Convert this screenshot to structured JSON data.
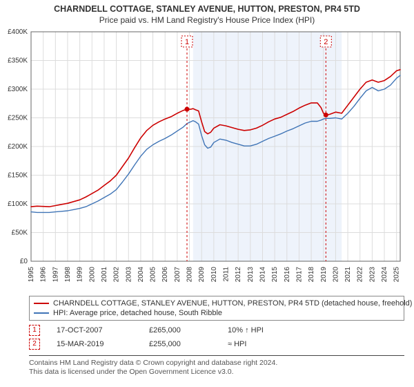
{
  "title": "CHARNDELL COTTAGE, STANLEY AVENUE, HUTTON, PRESTON, PR4 5TD",
  "subtitle": "Price paid vs. HM Land Registry's House Price Index (HPI)",
  "chart": {
    "type": "line",
    "background_color": "#ffffff",
    "grid_color": "#dcdcdc",
    "axis_color": "#666666",
    "ylim": [
      0,
      400000
    ],
    "ytick_step": 50000,
    "ytick_labels": [
      "£0",
      "£50K",
      "£100K",
      "£150K",
      "£200K",
      "£250K",
      "£300K",
      "£350K",
      "£400K"
    ],
    "x_years": [
      1995,
      1996,
      1997,
      1998,
      1999,
      2000,
      2001,
      2002,
      2003,
      2004,
      2005,
      2006,
      2007,
      2008,
      2009,
      2010,
      2011,
      2012,
      2013,
      2014,
      2015,
      2016,
      2017,
      2018,
      2019,
      2020,
      2021,
      2022,
      2023,
      2024,
      2025
    ],
    "shaded_band": {
      "from_year": 2008.3,
      "to_year": 2020.5,
      "fill": "#eef3fb"
    },
    "series": [
      {
        "name": "CHARNDELL COTTAGE, STANLEY AVENUE, HUTTON, PRESTON, PR4 5TD (detached house, freehold)",
        "color": "#cc0000",
        "width": 1.6,
        "points": [
          [
            1995.0,
            95000
          ],
          [
            1995.5,
            96000
          ],
          [
            1996.0,
            95500
          ],
          [
            1996.5,
            95000
          ],
          [
            1997.0,
            97000
          ],
          [
            1997.5,
            99000
          ],
          [
            1998.0,
            101000
          ],
          [
            1998.5,
            104000
          ],
          [
            1999.0,
            107000
          ],
          [
            1999.5,
            112000
          ],
          [
            2000.0,
            118000
          ],
          [
            2000.5,
            124000
          ],
          [
            2001.0,
            132000
          ],
          [
            2001.5,
            140000
          ],
          [
            2002.0,
            150000
          ],
          [
            2002.5,
            165000
          ],
          [
            2003.0,
            180000
          ],
          [
            2003.5,
            198000
          ],
          [
            2004.0,
            215000
          ],
          [
            2004.5,
            228000
          ],
          [
            2005.0,
            237000
          ],
          [
            2005.5,
            243000
          ],
          [
            2006.0,
            248000
          ],
          [
            2006.5,
            252000
          ],
          [
            2007.0,
            258000
          ],
          [
            2007.5,
            263000
          ],
          [
            2007.8,
            265000
          ],
          [
            2008.1,
            265000
          ],
          [
            2008.3,
            266000
          ],
          [
            2008.5,
            264000
          ],
          [
            2008.75,
            262000
          ],
          [
            2009.0,
            243000
          ],
          [
            2009.25,
            226000
          ],
          [
            2009.5,
            222000
          ],
          [
            2009.75,
            225000
          ],
          [
            2010.0,
            232000
          ],
          [
            2010.5,
            238000
          ],
          [
            2011.0,
            236000
          ],
          [
            2011.5,
            233000
          ],
          [
            2012.0,
            230000
          ],
          [
            2012.5,
            228000
          ],
          [
            2013.0,
            229000
          ],
          [
            2013.5,
            232000
          ],
          [
            2014.0,
            237000
          ],
          [
            2014.5,
            243000
          ],
          [
            2015.0,
            248000
          ],
          [
            2015.5,
            251000
          ],
          [
            2016.0,
            256000
          ],
          [
            2016.5,
            261000
          ],
          [
            2017.0,
            267000
          ],
          [
            2017.5,
            272000
          ],
          [
            2018.0,
            276000
          ],
          [
            2018.5,
            276000
          ],
          [
            2018.8,
            268000
          ],
          [
            2019.0,
            258000
          ],
          [
            2019.2,
            255000
          ],
          [
            2019.5,
            256000
          ],
          [
            2020.0,
            260000
          ],
          [
            2020.5,
            258000
          ],
          [
            2021.0,
            272000
          ],
          [
            2021.5,
            286000
          ],
          [
            2022.0,
            300000
          ],
          [
            2022.5,
            312000
          ],
          [
            2023.0,
            316000
          ],
          [
            2023.5,
            312000
          ],
          [
            2024.0,
            315000
          ],
          [
            2024.5,
            322000
          ],
          [
            2025.0,
            332000
          ],
          [
            2025.3,
            334000
          ]
        ]
      },
      {
        "name": "HPI: Average price, detached house, South Ribble",
        "color": "#3f74b6",
        "width": 1.4,
        "points": [
          [
            1995.0,
            86000
          ],
          [
            1995.5,
            85000
          ],
          [
            1996.0,
            85000
          ],
          [
            1996.5,
            85000
          ],
          [
            1997.0,
            86000
          ],
          [
            1997.5,
            87000
          ],
          [
            1998.0,
            88000
          ],
          [
            1998.5,
            90000
          ],
          [
            1999.0,
            92000
          ],
          [
            1999.5,
            95000
          ],
          [
            2000.0,
            100000
          ],
          [
            2000.5,
            105000
          ],
          [
            2001.0,
            111000
          ],
          [
            2001.5,
            117000
          ],
          [
            2002.0,
            125000
          ],
          [
            2002.5,
            138000
          ],
          [
            2003.0,
            152000
          ],
          [
            2003.5,
            168000
          ],
          [
            2004.0,
            183000
          ],
          [
            2004.5,
            195000
          ],
          [
            2005.0,
            203000
          ],
          [
            2005.5,
            209000
          ],
          [
            2006.0,
            214000
          ],
          [
            2006.5,
            220000
          ],
          [
            2007.0,
            227000
          ],
          [
            2007.5,
            234000
          ],
          [
            2007.8,
            240000
          ],
          [
            2008.1,
            243000
          ],
          [
            2008.3,
            245000
          ],
          [
            2008.5,
            243000
          ],
          [
            2008.75,
            239000
          ],
          [
            2009.0,
            219000
          ],
          [
            2009.25,
            203000
          ],
          [
            2009.5,
            197000
          ],
          [
            2009.75,
            199000
          ],
          [
            2010.0,
            207000
          ],
          [
            2010.5,
            213000
          ],
          [
            2011.0,
            211000
          ],
          [
            2011.5,
            207000
          ],
          [
            2012.0,
            204000
          ],
          [
            2012.5,
            201000
          ],
          [
            2013.0,
            201000
          ],
          [
            2013.5,
            204000
          ],
          [
            2014.0,
            209000
          ],
          [
            2014.5,
            214000
          ],
          [
            2015.0,
            218000
          ],
          [
            2015.5,
            222000
          ],
          [
            2016.0,
            227000
          ],
          [
            2016.5,
            231000
          ],
          [
            2017.0,
            236000
          ],
          [
            2017.5,
            241000
          ],
          [
            2018.0,
            244000
          ],
          [
            2018.5,
            244000
          ],
          [
            2018.8,
            246000
          ],
          [
            2019.0,
            248000
          ],
          [
            2019.2,
            249000
          ],
          [
            2019.5,
            249000
          ],
          [
            2020.0,
            250000
          ],
          [
            2020.5,
            248000
          ],
          [
            2021.0,
            258000
          ],
          [
            2021.5,
            270000
          ],
          [
            2022.0,
            284000
          ],
          [
            2022.5,
            297000
          ],
          [
            2023.0,
            303000
          ],
          [
            2023.5,
            297000
          ],
          [
            2024.0,
            300000
          ],
          [
            2024.5,
            307000
          ],
          [
            2025.0,
            319000
          ],
          [
            2025.3,
            324000
          ]
        ]
      }
    ],
    "sale_markers": [
      {
        "n": "1",
        "year": 2007.8,
        "price": 265000
      },
      {
        "n": "2",
        "year": 2019.2,
        "price": 255000
      }
    ]
  },
  "sales": [
    {
      "n": "1",
      "date": "17-OCT-2007",
      "price": "£265,000",
      "relation": "10% ↑ HPI"
    },
    {
      "n": "2",
      "date": "15-MAR-2019",
      "price": "£255,000",
      "relation": "≈ HPI"
    }
  ],
  "footer_line1": "Contains HM Land Registry data © Crown copyright and database right 2024.",
  "footer_line2": "This data is licensed under the Open Government Licence v3.0."
}
